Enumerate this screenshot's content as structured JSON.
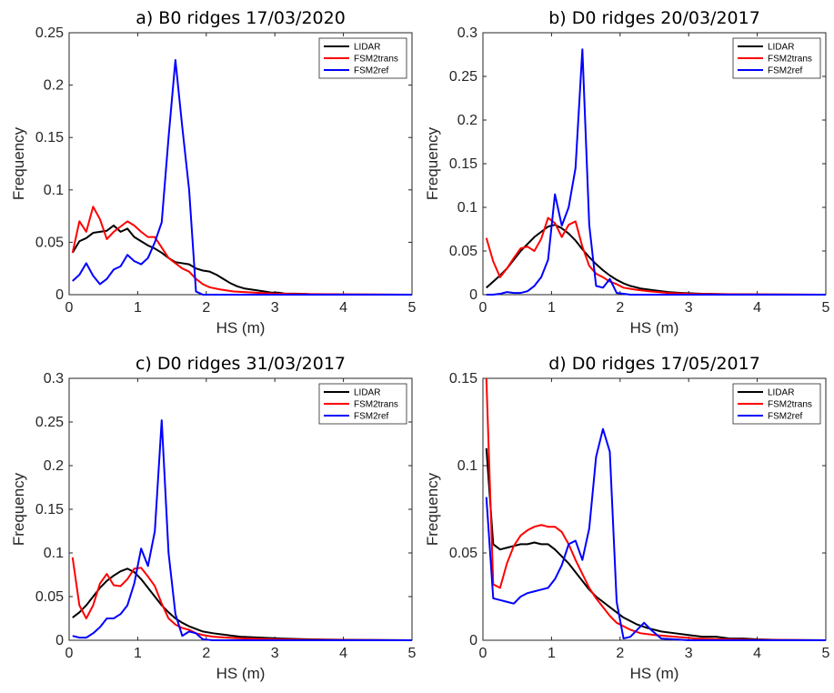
{
  "chart_data": [
    {
      "type": "line",
      "title": "a) B0 ridges 17/03/2020",
      "xlabel": "HS (m)",
      "ylabel": "Frequency",
      "xlim": [
        0,
        5
      ],
      "ylim": [
        0,
        0.25
      ],
      "xticks": [
        "0",
        "1",
        "2",
        "3",
        "4",
        "5"
      ],
      "yticks": [
        "0",
        "0.05",
        "0.1",
        "0.15",
        "0.2",
        "0.25"
      ],
      "legend_position": "top-right",
      "grid": false,
      "series": [
        {
          "name": "LIDAR",
          "color": "#000000",
          "x": [
            0.05,
            0.15,
            0.25,
            0.35,
            0.45,
            0.55,
            0.65,
            0.75,
            0.85,
            0.95,
            1.05,
            1.15,
            1.25,
            1.35,
            1.45,
            1.55,
            1.65,
            1.75,
            1.85,
            1.95,
            2.05,
            2.15,
            2.25,
            2.35,
            2.45,
            2.55,
            2.65,
            2.75,
            2.85,
            2.95,
            3.05,
            3.15,
            3.3,
            3.5,
            3.8,
            4.2,
            5.0
          ],
          "y": [
            0.04,
            0.051,
            0.054,
            0.059,
            0.06,
            0.061,
            0.066,
            0.06,
            0.063,
            0.055,
            0.051,
            0.047,
            0.044,
            0.04,
            0.035,
            0.031,
            0.03,
            0.029,
            0.025,
            0.023,
            0.022,
            0.019,
            0.015,
            0.011,
            0.008,
            0.006,
            0.005,
            0.004,
            0.003,
            0.002,
            0.002,
            0.001,
            0.001,
            0.0005,
            0.0002,
            0.0001,
            0
          ]
        },
        {
          "name": "FSM2trans",
          "color": "#ff0000",
          "x": [
            0.05,
            0.15,
            0.25,
            0.35,
            0.45,
            0.55,
            0.65,
            0.75,
            0.85,
            0.95,
            1.05,
            1.15,
            1.25,
            1.35,
            1.45,
            1.55,
            1.65,
            1.75,
            1.85,
            1.95,
            2.05,
            2.2,
            2.4,
            2.7,
            3.0,
            3.5,
            5.0
          ],
          "y": [
            0.04,
            0.07,
            0.06,
            0.084,
            0.072,
            0.053,
            0.06,
            0.065,
            0.07,
            0.066,
            0.06,
            0.055,
            0.055,
            0.045,
            0.035,
            0.03,
            0.025,
            0.022,
            0.015,
            0.01,
            0.007,
            0.005,
            0.003,
            0.002,
            0.001,
            0.0005,
            0
          ]
        },
        {
          "name": "FSM2ref",
          "color": "#0000ff",
          "x": [
            0.05,
            0.15,
            0.25,
            0.35,
            0.45,
            0.55,
            0.65,
            0.75,
            0.85,
            0.95,
            1.05,
            1.15,
            1.25,
            1.35,
            1.45,
            1.55,
            1.65,
            1.75,
            1.85,
            1.95,
            2.1,
            2.5,
            3.0,
            5.0
          ],
          "y": [
            0.013,
            0.019,
            0.03,
            0.018,
            0.01,
            0.015,
            0.024,
            0.027,
            0.038,
            0.032,
            0.029,
            0.035,
            0.05,
            0.069,
            0.15,
            0.224,
            0.16,
            0.1,
            0.003,
            0,
            0,
            0,
            0,
            0
          ]
        }
      ]
    },
    {
      "type": "line",
      "title": "b) D0 ridges 20/03/2017",
      "xlabel": "HS (m)",
      "ylabel": "Frequency",
      "xlim": [
        0,
        5
      ],
      "ylim": [
        0,
        0.3
      ],
      "xticks": [
        "0",
        "1",
        "2",
        "3",
        "4",
        "5"
      ],
      "yticks": [
        "0",
        "0.05",
        "0.1",
        "0.15",
        "0.2",
        "0.25",
        "0.3"
      ],
      "legend_position": "top-right",
      "grid": false,
      "series": [
        {
          "name": "LIDAR",
          "color": "#000000",
          "x": [
            0.05,
            0.15,
            0.25,
            0.35,
            0.45,
            0.55,
            0.65,
            0.75,
            0.85,
            0.95,
            1.05,
            1.15,
            1.25,
            1.35,
            1.45,
            1.55,
            1.65,
            1.75,
            1.85,
            1.95,
            2.05,
            2.15,
            2.3,
            2.5,
            2.7,
            2.9,
            3.2,
            3.6,
            4.0,
            5.0
          ],
          "y": [
            0.008,
            0.015,
            0.022,
            0.03,
            0.04,
            0.05,
            0.058,
            0.066,
            0.072,
            0.078,
            0.08,
            0.076,
            0.07,
            0.062,
            0.052,
            0.043,
            0.035,
            0.028,
            0.022,
            0.017,
            0.013,
            0.01,
            0.007,
            0.005,
            0.003,
            0.002,
            0.001,
            0.0005,
            0.0002,
            0
          ]
        },
        {
          "name": "FSM2trans",
          "color": "#ff0000",
          "x": [
            0.05,
            0.15,
            0.25,
            0.35,
            0.45,
            0.55,
            0.65,
            0.75,
            0.85,
            0.95,
            1.05,
            1.15,
            1.25,
            1.35,
            1.45,
            1.55,
            1.65,
            1.75,
            1.85,
            1.95,
            2.05,
            2.2,
            2.4,
            2.7,
            3.0,
            3.5,
            5.0
          ],
          "y": [
            0.065,
            0.038,
            0.02,
            0.03,
            0.042,
            0.053,
            0.055,
            0.05,
            0.064,
            0.088,
            0.082,
            0.066,
            0.08,
            0.084,
            0.055,
            0.033,
            0.024,
            0.02,
            0.015,
            0.012,
            0.008,
            0.006,
            0.004,
            0.002,
            0.001,
            0.0005,
            0
          ]
        },
        {
          "name": "FSM2ref",
          "color": "#0000ff",
          "x": [
            0.05,
            0.15,
            0.25,
            0.35,
            0.45,
            0.55,
            0.65,
            0.75,
            0.85,
            0.95,
            1.05,
            1.15,
            1.25,
            1.35,
            1.45,
            1.55,
            1.65,
            1.75,
            1.85,
            1.95,
            2.05,
            2.15,
            2.3,
            2.6,
            3.0,
            5.0
          ],
          "y": [
            0,
            0,
            0.001,
            0.003,
            0.002,
            0.002,
            0.004,
            0.01,
            0.02,
            0.04,
            0.115,
            0.079,
            0.1,
            0.145,
            0.281,
            0.08,
            0.01,
            0.008,
            0.018,
            0.002,
            0.001,
            0,
            0,
            0,
            0,
            0
          ]
        }
      ]
    },
    {
      "type": "line",
      "title": "c) D0 ridges 31/03/2017",
      "xlabel": "HS (m)",
      "ylabel": "Frequency",
      "xlim": [
        0,
        5
      ],
      "ylim": [
        0,
        0.3
      ],
      "xticks": [
        "0",
        "1",
        "2",
        "3",
        "4",
        "5"
      ],
      "yticks": [
        "0",
        "0.05",
        "0.1",
        "0.15",
        "0.2",
        "0.25",
        "0.3"
      ],
      "legend_position": "top-right",
      "grid": false,
      "series": [
        {
          "name": "LIDAR",
          "color": "#000000",
          "x": [
            0.05,
            0.15,
            0.25,
            0.35,
            0.45,
            0.55,
            0.65,
            0.75,
            0.85,
            0.95,
            1.05,
            1.15,
            1.25,
            1.35,
            1.45,
            1.55,
            1.65,
            1.75,
            1.85,
            1.95,
            2.1,
            2.3,
            2.5,
            2.8,
            3.1,
            3.5,
            4.0,
            5.0
          ],
          "y": [
            0.026,
            0.032,
            0.04,
            0.05,
            0.06,
            0.068,
            0.074,
            0.079,
            0.082,
            0.078,
            0.07,
            0.06,
            0.05,
            0.04,
            0.032,
            0.025,
            0.02,
            0.016,
            0.013,
            0.01,
            0.008,
            0.006,
            0.004,
            0.003,
            0.002,
            0.001,
            0.0005,
            0
          ]
        },
        {
          "name": "FSM2trans",
          "color": "#ff0000",
          "x": [
            0.05,
            0.15,
            0.25,
            0.35,
            0.45,
            0.55,
            0.65,
            0.75,
            0.85,
            0.95,
            1.05,
            1.15,
            1.25,
            1.35,
            1.45,
            1.55,
            1.65,
            1.75,
            1.85,
            1.95,
            2.1,
            2.3,
            2.6,
            3.0,
            3.5,
            5.0
          ],
          "y": [
            0.095,
            0.04,
            0.025,
            0.04,
            0.065,
            0.076,
            0.063,
            0.062,
            0.07,
            0.082,
            0.083,
            0.073,
            0.062,
            0.042,
            0.025,
            0.018,
            0.014,
            0.012,
            0.008,
            0.006,
            0.004,
            0.003,
            0.002,
            0.001,
            0.0005,
            0
          ]
        },
        {
          "name": "FSM2ref",
          "color": "#0000ff",
          "x": [
            0.05,
            0.15,
            0.25,
            0.35,
            0.45,
            0.55,
            0.65,
            0.75,
            0.85,
            0.95,
            1.05,
            1.15,
            1.25,
            1.35,
            1.45,
            1.55,
            1.65,
            1.75,
            1.85,
            1.95,
            2.1,
            2.5,
            3.0,
            5.0
          ],
          "y": [
            0.005,
            0.003,
            0.003,
            0.008,
            0.015,
            0.025,
            0.025,
            0.03,
            0.04,
            0.065,
            0.105,
            0.085,
            0.125,
            0.252,
            0.1,
            0.03,
            0.005,
            0.01,
            0.008,
            0.001,
            0,
            0,
            0,
            0
          ]
        }
      ]
    },
    {
      "type": "line",
      "title": "d) D0 ridges 17/05/2017",
      "xlabel": "HS (m)",
      "ylabel": "Frequency",
      "xlim": [
        0,
        5
      ],
      "ylim": [
        0,
        0.15
      ],
      "xticks": [
        "0",
        "1",
        "2",
        "3",
        "4",
        "5"
      ],
      "yticks": [
        "0",
        "0.05",
        "0.1",
        "0.15"
      ],
      "legend_position": "top-right",
      "grid": false,
      "series": [
        {
          "name": "LIDAR",
          "color": "#000000",
          "x": [
            0.05,
            0.15,
            0.25,
            0.35,
            0.45,
            0.55,
            0.65,
            0.75,
            0.85,
            0.95,
            1.05,
            1.15,
            1.25,
            1.35,
            1.45,
            1.55,
            1.65,
            1.75,
            1.85,
            1.95,
            2.05,
            2.15,
            2.25,
            2.4,
            2.6,
            2.8,
            3.0,
            3.2,
            3.4,
            3.6,
            3.8,
            4.0,
            4.3,
            5.0
          ],
          "y": [
            0.11,
            0.055,
            0.052,
            0.053,
            0.054,
            0.055,
            0.055,
            0.056,
            0.055,
            0.055,
            0.052,
            0.048,
            0.044,
            0.039,
            0.034,
            0.029,
            0.025,
            0.022,
            0.019,
            0.016,
            0.013,
            0.011,
            0.009,
            0.007,
            0.005,
            0.004,
            0.003,
            0.002,
            0.002,
            0.001,
            0.001,
            0.0005,
            0.0002,
            0
          ]
        },
        {
          "name": "FSM2trans",
          "color": "#ff0000",
          "x": [
            0.05,
            0.15,
            0.25,
            0.35,
            0.45,
            0.55,
            0.65,
            0.75,
            0.85,
            0.95,
            1.05,
            1.15,
            1.25,
            1.35,
            1.45,
            1.55,
            1.65,
            1.75,
            1.85,
            1.95,
            2.05,
            2.15,
            2.3,
            2.5,
            2.8,
            3.1,
            3.5,
            4.0,
            5.0
          ],
          "y": [
            0.15,
            0.032,
            0.03,
            0.044,
            0.054,
            0.06,
            0.063,
            0.065,
            0.066,
            0.065,
            0.065,
            0.062,
            0.055,
            0.046,
            0.038,
            0.03,
            0.024,
            0.019,
            0.014,
            0.01,
            0.008,
            0.006,
            0.004,
            0.003,
            0.002,
            0.001,
            0.0005,
            0.0002,
            0
          ]
        },
        {
          "name": "FSM2ref",
          "color": "#0000ff",
          "x": [
            0.05,
            0.15,
            0.25,
            0.35,
            0.45,
            0.55,
            0.65,
            0.75,
            0.85,
            0.95,
            1.05,
            1.15,
            1.25,
            1.35,
            1.45,
            1.55,
            1.65,
            1.75,
            1.85,
            1.95,
            2.05,
            2.15,
            2.25,
            2.35,
            2.45,
            2.6,
            3.0,
            5.0
          ],
          "y": [
            0.082,
            0.024,
            0.023,
            0.022,
            0.021,
            0.025,
            0.027,
            0.028,
            0.029,
            0.03,
            0.035,
            0.043,
            0.055,
            0.057,
            0.046,
            0.064,
            0.105,
            0.121,
            0.108,
            0.022,
            0.001,
            0.002,
            0.006,
            0.01,
            0.006,
            0.001,
            0,
            0
          ]
        }
      ]
    }
  ]
}
